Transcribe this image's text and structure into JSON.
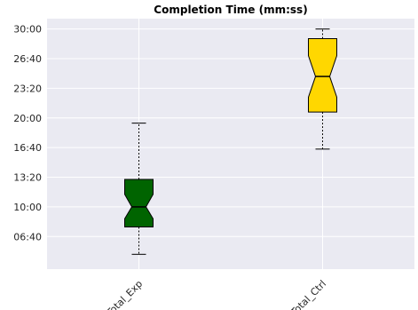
{
  "chart_data": {
    "type": "box",
    "title": "Completion Time (mm:ss)",
    "xlabel": "",
    "ylabel": "",
    "notched": true,
    "grid": true,
    "legend": "none",
    "y_unit": "seconds",
    "ylim": [
      180,
      1870
    ],
    "yticks": [
      {
        "value": 400,
        "label": "06:40"
      },
      {
        "value": 600,
        "label": "10:00"
      },
      {
        "value": 800,
        "label": "13:20"
      },
      {
        "value": 1000,
        "label": "16:40"
      },
      {
        "value": 1200,
        "label": "20:00"
      },
      {
        "value": 1400,
        "label": "23:20"
      },
      {
        "value": 1600,
        "label": "26:40"
      },
      {
        "value": 1800,
        "label": "30:00"
      }
    ],
    "categories": [
      "Total_Exp",
      "Total_Ctrl"
    ],
    "boxes": [
      {
        "name": "Total_Exp",
        "whisker_low": 280,
        "q1": 465,
        "notch_low": 520,
        "median": 600,
        "notch_high": 685,
        "q3": 785,
        "whisker_high": 1165,
        "color": "#006400"
      },
      {
        "name": "Total_Ctrl",
        "whisker_low": 990,
        "q1": 1240,
        "notch_low": 1340,
        "median": 1480,
        "notch_high": 1620,
        "q3": 1735,
        "whisker_high": 1800,
        "color": "#ffd700"
      }
    ],
    "colors": {
      "background": "#eaeaf2",
      "grid": "#ffffff",
      "edge": "#000000",
      "text": "#262626"
    }
  }
}
